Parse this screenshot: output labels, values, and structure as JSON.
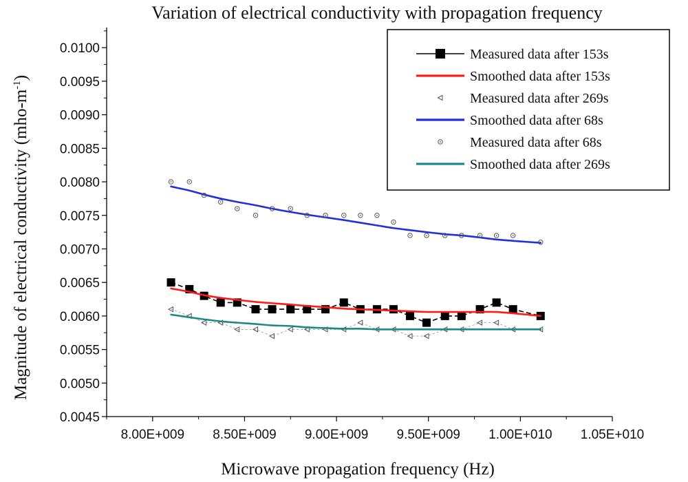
{
  "chart_data": {
    "type": "line",
    "title": "Variation of electrical conductivity with propagation frequency",
    "xlabel": "Microwave propagation frequency (Hz)",
    "ylabel": "Magnitude of electrical conductivity (mho-m",
    "ylabel_sup": "-1",
    "ylabel_tail": ")",
    "xlim": [
      7750000000.0,
      10500000000.0
    ],
    "ylim": [
      0.0045,
      0.0103
    ],
    "x_ticks": [
      8000000000.0,
      8500000000.0,
      9000000000.0,
      9500000000.0,
      10000000000.0,
      10500000000.0
    ],
    "x_tick_labels": [
      "8.00E+009",
      "8.50E+009",
      "9.00E+009",
      "9.50E+009",
      "1.00E+010",
      "1.05E+010"
    ],
    "y_ticks": [
      0.0045,
      0.005,
      0.0055,
      0.006,
      0.0065,
      0.007,
      0.0075,
      0.008,
      0.0085,
      0.009,
      0.0095,
      0.01
    ],
    "y_tick_labels": [
      "0.0045",
      "0.0050",
      "0.0055",
      "0.0060",
      "0.0065",
      "0.0070",
      "0.0075",
      "0.0080",
      "0.0085",
      "0.0090",
      "0.0095",
      "0.0100"
    ],
    "grid": false,
    "legend_position": "top-right",
    "x": [
      8100000000.0,
      8200000000.0,
      8280000000.0,
      8370000000.0,
      8460000000.0,
      8560000000.0,
      8650000000.0,
      8750000000.0,
      8840000000.0,
      8940000000.0,
      9040000000.0,
      9130000000.0,
      9220000000.0,
      9310000000.0,
      9400000000.0,
      9490000000.0,
      9590000000.0,
      9680000000.0,
      9780000000.0,
      9870000000.0,
      9960000000.0,
      10110000000.0
    ],
    "series": [
      {
        "name": "Measured data after 153s",
        "style": "line-square",
        "color": "#000000",
        "values": [
          0.0065,
          0.0064,
          0.0063,
          0.0062,
          0.0062,
          0.0061,
          0.0061,
          0.0061,
          0.0061,
          0.0061,
          0.0062,
          0.0061,
          0.0061,
          0.0061,
          0.006,
          0.0059,
          0.006,
          0.006,
          0.0061,
          0.0062,
          0.0061,
          0.006
        ]
      },
      {
        "name": "Smoothed data after 153s",
        "style": "line",
        "color": "#ff1a1a",
        "values": [
          0.00641,
          0.00636,
          0.00631,
          0.00627,
          0.00624,
          0.00621,
          0.00619,
          0.00617,
          0.00615,
          0.00613,
          0.00611,
          0.0061,
          0.00609,
          0.00608,
          0.00607,
          0.00606,
          0.00606,
          0.00606,
          0.00606,
          0.00606,
          0.00604,
          0.006
        ]
      },
      {
        "name": "Measured data after 269s",
        "style": "triangle",
        "color": "#555555",
        "values": [
          0.0061,
          0.006,
          0.0059,
          0.0059,
          0.0058,
          0.0058,
          0.0057,
          0.0058,
          0.0058,
          0.0058,
          0.0058,
          0.0059,
          0.0058,
          0.0058,
          0.0057,
          0.0057,
          0.0058,
          0.0058,
          0.0059,
          0.0059,
          0.0058,
          0.0058
        ]
      },
      {
        "name": "Smoothed data after 68s",
        "style": "line",
        "color": "#1f2fe0",
        "values": [
          0.00793,
          0.00787,
          0.00781,
          0.00775,
          0.0077,
          0.00765,
          0.0076,
          0.00755,
          0.00751,
          0.00747,
          0.00743,
          0.00739,
          0.00735,
          0.00731,
          0.00728,
          0.00725,
          0.00722,
          0.0072,
          0.00717,
          0.00714,
          0.00712,
          0.00709
        ]
      },
      {
        "name": "Measured data after 68s",
        "style": "circle",
        "color": "#555555",
        "values": [
          0.008,
          0.008,
          0.0078,
          0.0077,
          0.0076,
          0.0075,
          0.0076,
          0.0076,
          0.0075,
          0.0075,
          0.0075,
          0.0075,
          0.0075,
          0.0074,
          0.0072,
          0.0072,
          0.0072,
          0.0072,
          0.0072,
          0.0072,
          0.0072,
          0.0071
        ]
      },
      {
        "name": "Smoothed data after 269s",
        "style": "line",
        "color": "#1a8a86",
        "values": [
          0.00602,
          0.00598,
          0.00595,
          0.00592,
          0.0059,
          0.00588,
          0.00586,
          0.00585,
          0.00583,
          0.00582,
          0.00581,
          0.00581,
          0.0058,
          0.0058,
          0.0058,
          0.0058,
          0.0058,
          0.0058,
          0.0058,
          0.0058,
          0.0058,
          0.0058
        ]
      }
    ]
  }
}
